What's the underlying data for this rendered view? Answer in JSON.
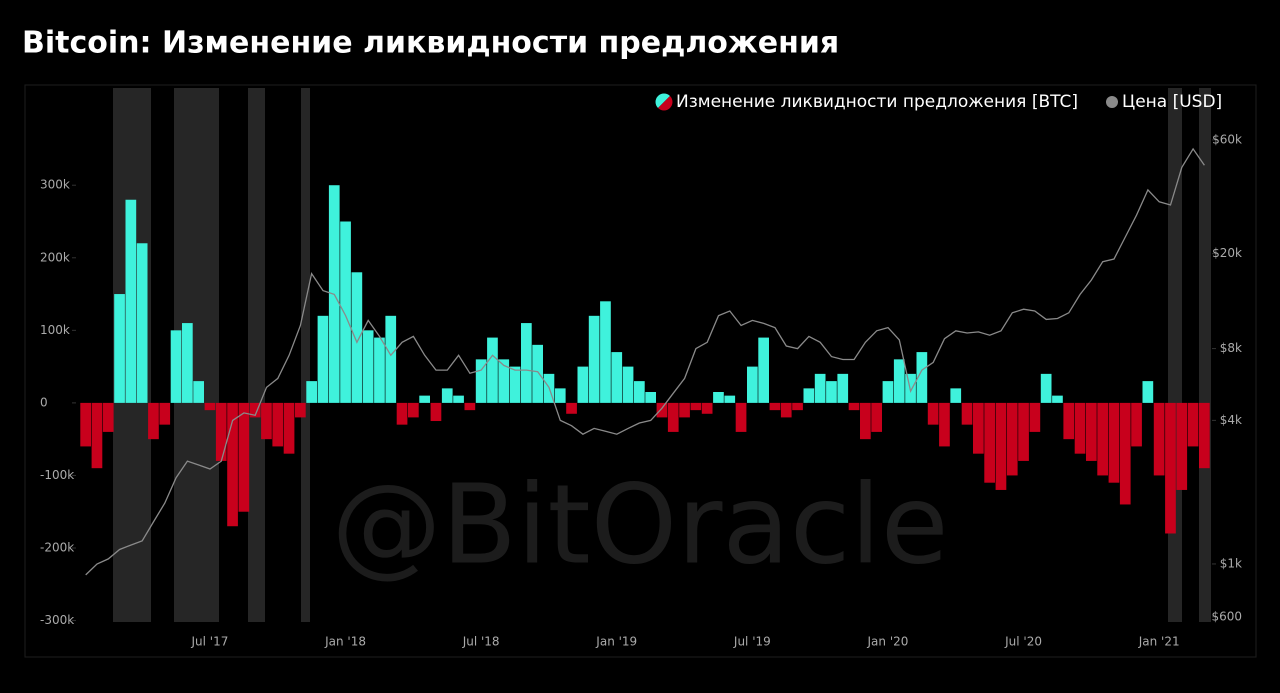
{
  "chart_data": {
    "type": "bar",
    "title": "Bitcoin: Изменение ликвидности предложения",
    "watermark": "@BitOracle",
    "categories": [
      null,
      null,
      null,
      null,
      null,
      null,
      null,
      null,
      null,
      null,
      null,
      "Jul '17",
      null,
      null,
      null,
      null,
      null,
      null,
      null,
      null,
      null,
      null,
      null,
      "Jan '18",
      null,
      null,
      null,
      null,
      null,
      null,
      null,
      null,
      null,
      null,
      null,
      "Jul '18",
      null,
      null,
      null,
      null,
      null,
      null,
      null,
      null,
      null,
      null,
      null,
      "Jan '19",
      null,
      null,
      null,
      null,
      null,
      null,
      null,
      null,
      null,
      null,
      null,
      "Jul '19",
      null,
      null,
      null,
      null,
      null,
      null,
      null,
      null,
      null,
      null,
      null,
      "Jan '20",
      null,
      null,
      null,
      null,
      null,
      null,
      null,
      null,
      null,
      null,
      null,
      "Jul '20",
      null,
      null,
      null,
      null,
      null,
      null,
      null,
      null,
      null,
      null,
      null,
      "Jan '21",
      null,
      null,
      null,
      null
    ],
    "series": [
      {
        "name": "Изменение ликвидности предложения [BTC]",
        "color": "#3ff2dc",
        "negative_color": "#c8001c",
        "values": [
          -60000,
          -90000,
          -40000,
          150000,
          280000,
          220000,
          -50000,
          -30000,
          100000,
          110000,
          30000,
          -10000,
          -80000,
          -170000,
          -150000,
          -20000,
          -50000,
          -60000,
          -70000,
          -20000,
          30000,
          120000,
          300000,
          250000,
          180000,
          100000,
          90000,
          120000,
          -30000,
          -20000,
          10000,
          -25000,
          20000,
          10000,
          -10000,
          60000,
          90000,
          60000,
          50000,
          110000,
          80000,
          40000,
          20000,
          -15000,
          50000,
          120000,
          140000,
          70000,
          50000,
          30000,
          15000,
          -20000,
          -40000,
          -20000,
          -10000,
          -15000,
          15000,
          10000,
          -40000,
          50000,
          90000,
          -10000,
          -20000,
          -10000,
          20000,
          40000,
          30000,
          40000,
          -10000,
          -50000,
          -40000,
          30000,
          60000,
          40000,
          70000,
          -30000,
          -60000,
          20000,
          -30000,
          -70000,
          -110000,
          -120000,
          -100000,
          -80000,
          -40000,
          40000,
          10000,
          -50000,
          -70000,
          -80000,
          -100000,
          -110000,
          -140000,
          -60000,
          30000,
          -100000,
          -180000,
          -120000,
          -60000,
          -90000
        ]
      },
      {
        "name": "Цена [USD]",
        "color": "#8a8a8a",
        "axis": "y2",
        "values": [
          900,
          1000,
          1050,
          1150,
          1200,
          1250,
          1500,
          1800,
          2300,
          2700,
          2600,
          2500,
          2700,
          4000,
          4300,
          4200,
          5500,
          6000,
          7500,
          10000,
          16500,
          14000,
          13500,
          11000,
          8500,
          10500,
          9000,
          7500,
          8500,
          9000,
          7500,
          6500,
          6500,
          7500,
          6300,
          6500,
          7500,
          6800,
          6500,
          6500,
          6400,
          5500,
          4000,
          3800,
          3500,
          3700,
          3600,
          3500,
          3700,
          3900,
          4000,
          4500,
          5200,
          6000,
          8000,
          8500,
          11000,
          11500,
          10000,
          10500,
          10200,
          9800,
          8200,
          8000,
          9000,
          8500,
          7400,
          7200,
          7200,
          8500,
          9500,
          9800,
          8700,
          5300,
          6500,
          7000,
          8800,
          9500,
          9300,
          9400,
          9100,
          9500,
          11300,
          11700,
          11500,
          10600,
          10700,
          11300,
          13500,
          15500,
          18500,
          19000,
          23500,
          29000,
          37000,
          33000,
          32000,
          46000,
          55000,
          47000
        ]
      }
    ],
    "ylim": [
      -302000,
      434000
    ],
    "yticks": [
      {
        "value": -300000,
        "label": "-300k"
      },
      {
        "value": -200000,
        "label": "-200k"
      },
      {
        "value": -100000,
        "label": "-100k"
      },
      0,
      {
        "value": 100000,
        "label": "100k"
      },
      {
        "value": 200000,
        "label": "200k"
      },
      {
        "value": 300000,
        "label": "300k"
      }
    ],
    "y2lim": [
      571,
      99000
    ],
    "y2log": true,
    "y2ticks": [
      {
        "value": 600,
        "label": "$600"
      },
      {
        "value": 1000,
        "label": "$1k"
      },
      {
        "value": 4000,
        "label": "$4k"
      },
      {
        "value": 8000,
        "label": "$8k"
      },
      {
        "value": 20000,
        "label": "$20k"
      },
      {
        "value": 60000,
        "label": "$60k"
      }
    ],
    "legend": "top-right",
    "grid": false
  }
}
